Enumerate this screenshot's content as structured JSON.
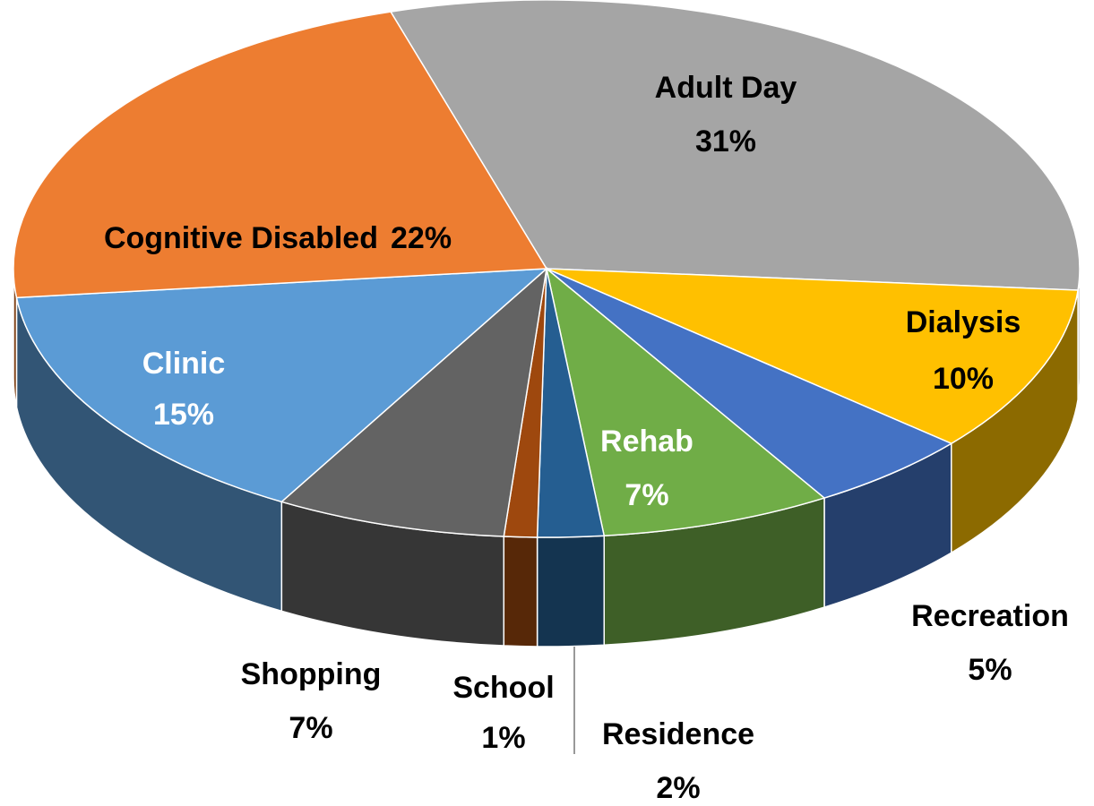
{
  "chart_data": {
    "type": "pie3d",
    "categories": [
      "Adult Day",
      "Dialysis",
      "Recreation",
      "Rehab",
      "Residence",
      "School",
      "Shopping",
      "Clinic",
      "Cognitive Disabled"
    ],
    "values": [
      31,
      10,
      5,
      7,
      2,
      1,
      7,
      15,
      22
    ],
    "value_labels": [
      "31%",
      "10%",
      "5%",
      "7%",
      "2%",
      "1%",
      "7%",
      "15%",
      "22%"
    ],
    "colors": [
      "#a5a5a5",
      "#ffc000",
      "#4472c4",
      "#70ad47",
      "#255e91",
      "#9e480e",
      "#636363",
      "#5b9bd5",
      "#ed7d31"
    ]
  }
}
